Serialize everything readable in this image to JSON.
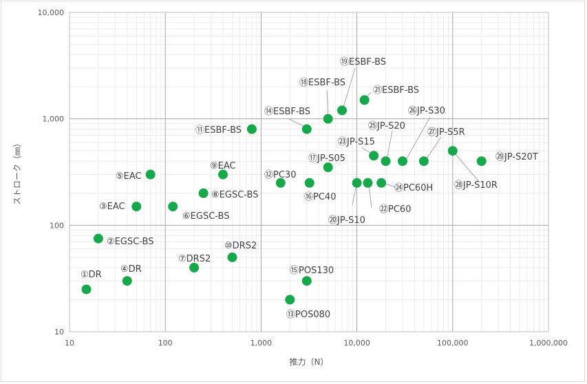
{
  "chart_data": {
    "type": "scatter",
    "xlabel": "推力（N）",
    "ylabel": "ストローク（㎜）",
    "xscale": "log",
    "yscale": "log",
    "xlim": [
      10,
      1000000
    ],
    "ylim": [
      10,
      10000
    ],
    "grid": true,
    "legend": "none",
    "marker_color": "#17a84b",
    "x_ticks": [
      {
        "v": 10,
        "label": "10"
      },
      {
        "v": 100,
        "label": "100"
      },
      {
        "v": 1000,
        "label": "1,000"
      },
      {
        "v": 10000,
        "label": "10,000"
      },
      {
        "v": 100000,
        "label": "100,000"
      },
      {
        "v": 1000000,
        "label": "1,000,000"
      }
    ],
    "y_ticks": [
      {
        "v": 10,
        "label": "10"
      },
      {
        "v": 100,
        "label": "100"
      },
      {
        "v": 1000,
        "label": "1,000"
      },
      {
        "v": 10000,
        "label": "10,000"
      }
    ],
    "points": [
      {
        "label": "①DR",
        "x": 15,
        "y": 25
      },
      {
        "label": "②EGSC-BS",
        "x": 20,
        "y": 75
      },
      {
        "label": "③EAC",
        "x": 50,
        "y": 150
      },
      {
        "label": "④DR",
        "x": 40,
        "y": 30
      },
      {
        "label": "⑤EAC",
        "x": 70,
        "y": 300
      },
      {
        "label": "⑥EGSC-BS",
        "x": 120,
        "y": 150
      },
      {
        "label": "⑦DRS2",
        "x": 200,
        "y": 40
      },
      {
        "label": "⑧EGSC-BS",
        "x": 250,
        "y": 200
      },
      {
        "label": "⑨EAC",
        "x": 400,
        "y": 300
      },
      {
        "label": "⑩DRS2",
        "x": 500,
        "y": 50
      },
      {
        "label": "⑪ESBF-BS",
        "x": 800,
        "y": 800
      },
      {
        "label": "⑫PC30",
        "x": 1600,
        "y": 250
      },
      {
        "label": "⑬POS080",
        "x": 2000,
        "y": 20
      },
      {
        "label": "⑭ESBF-BS",
        "x": 3000,
        "y": 800
      },
      {
        "label": "⑮POS130",
        "x": 3000,
        "y": 30
      },
      {
        "label": "⑯PC40",
        "x": 3200,
        "y": 250
      },
      {
        "label": "⑰JP-S05",
        "x": 5000,
        "y": 350
      },
      {
        "label": "⑱ESBF-BS",
        "x": 5000,
        "y": 1000
      },
      {
        "label": "⑲ESBF-BS",
        "x": 7000,
        "y": 1200
      },
      {
        "label": "⑳JP-S10",
        "x": 10000,
        "y": 250
      },
      {
        "label": "㉑ESBF-BS",
        "x": 12000,
        "y": 1500
      },
      {
        "label": "㉒PC60",
        "x": 13000,
        "y": 250
      },
      {
        "label": "㉓JP-S15",
        "x": 15000,
        "y": 450
      },
      {
        "label": "㉔PC60H",
        "x": 18000,
        "y": 250
      },
      {
        "label": "㉕JP-S20",
        "x": 20000,
        "y": 400
      },
      {
        "label": "㉖JP-S30",
        "x": 30000,
        "y": 400
      },
      {
        "label": "㉗JP-S5R",
        "x": 50000,
        "y": 400
      },
      {
        "label": "㉘JP-S10R",
        "x": 100000,
        "y": 500
      },
      {
        "label": "㉙JP-S20T",
        "x": 200000,
        "y": 400
      }
    ]
  }
}
